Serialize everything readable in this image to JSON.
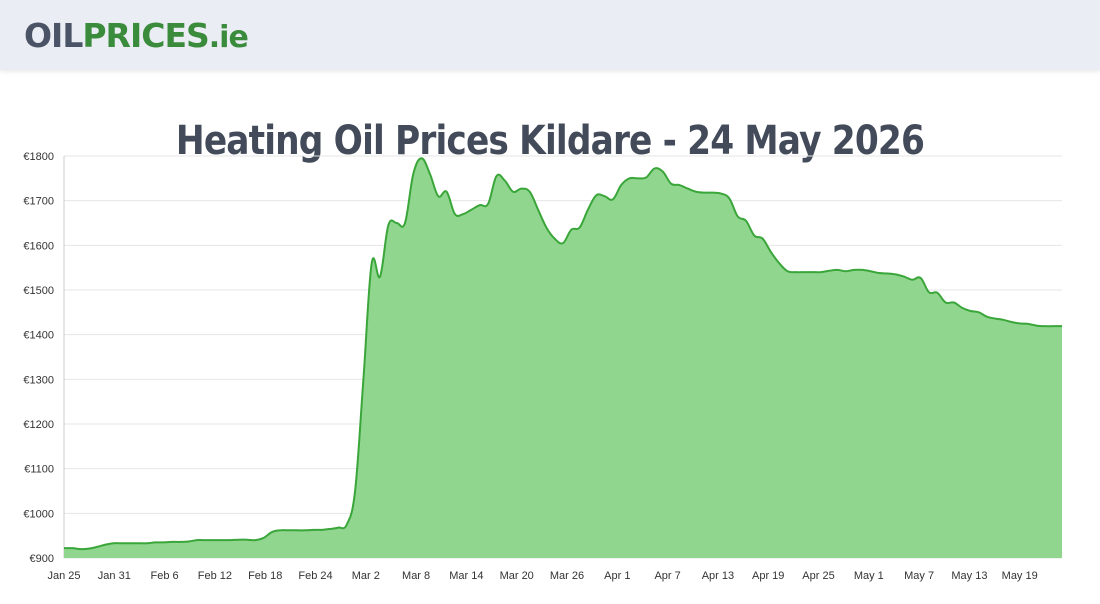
{
  "header": {
    "logo_oil": "OIL",
    "logo_prices": "PRICES",
    "logo_tld": ".ie"
  },
  "page": {
    "title": "Heating Oil Prices Kildare - 24 May 2026"
  },
  "colors": {
    "area_fill": "#90d68f",
    "line": "#3aa63a",
    "grid": "#e6e6e6",
    "title": "#434b5a",
    "logo_dark": "#4b5466",
    "logo_green": "#3a8b3c",
    "header_bg": "#eaedf3"
  },
  "chart_data": {
    "type": "area",
    "title": "",
    "xlabel": "",
    "ylabel": "",
    "ylim": [
      900,
      1800
    ],
    "y_ticks": [
      900,
      1000,
      1100,
      1200,
      1300,
      1400,
      1500,
      1600,
      1700,
      1800
    ],
    "y_tick_labels": [
      "€900",
      "€1000",
      "€1100",
      "€1200",
      "€1300",
      "€1400",
      "€1500",
      "€1600",
      "€1700",
      "€1800"
    ],
    "x_tick_labels": [
      "Jan 25",
      "Jan 31",
      "Feb 6",
      "Feb 12",
      "Feb 18",
      "Feb 24",
      "Mar 2",
      "Mar 8",
      "Mar 14",
      "Mar 20",
      "Mar 26",
      "Apr 1",
      "Apr 7",
      "Apr 13",
      "Apr 19",
      "Apr 25",
      "May 1",
      "May 7",
      "May 13",
      "May 19"
    ],
    "x_start": "Jan 25",
    "x_end": "May 24",
    "grid": true,
    "legend": "none",
    "series": [
      {
        "values": [
          922,
          922,
          920,
          921,
          925,
          930,
          933,
          933,
          933,
          933,
          933,
          935,
          935,
          936,
          936,
          937,
          940,
          940,
          940,
          940,
          940,
          941,
          941,
          940,
          945,
          958,
          962,
          962,
          962,
          962,
          963,
          963,
          965,
          968,
          975,
          1050,
          1300,
          1560,
          1530,
          1645,
          1650,
          1650,
          1760,
          1795,
          1760,
          1710,
          1720,
          1670,
          1670,
          1680,
          1690,
          1693,
          1755,
          1745,
          1720,
          1727,
          1720,
          1680,
          1640,
          1615,
          1605,
          1635,
          1640,
          1680,
          1712,
          1710,
          1703,
          1735,
          1750,
          1750,
          1752,
          1772,
          1765,
          1738,
          1735,
          1727,
          1720,
          1718,
          1718,
          1716,
          1705,
          1665,
          1655,
          1622,
          1615,
          1585,
          1560,
          1542,
          1540,
          1540,
          1540,
          1540,
          1543,
          1545,
          1542,
          1545,
          1545,
          1542,
          1538,
          1537,
          1535,
          1530,
          1523,
          1527,
          1495,
          1494,
          1472,
          1472,
          1460,
          1453,
          1450,
          1440,
          1436,
          1433,
          1428,
          1425,
          1424,
          1420,
          1419,
          1419,
          1419
        ]
      }
    ]
  }
}
